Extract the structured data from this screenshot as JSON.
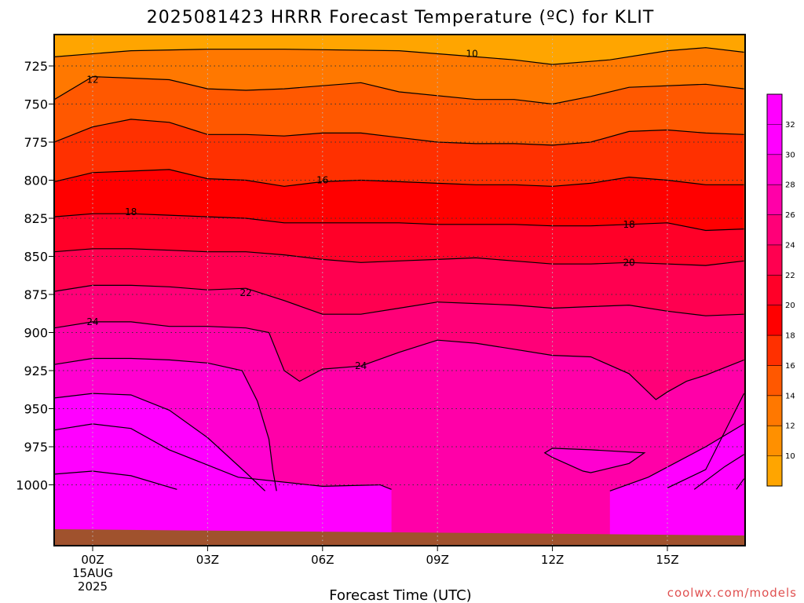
{
  "chart_data": {
    "type": "heatmap",
    "title": "2025081423 HRRR Forecast Temperature (ºC) for KLIT",
    "xlabel": "Forecast Time (UTC)",
    "ylabel": "",
    "credit": "coolwx.com/models",
    "x_ticks": [
      {
        "hour": 0,
        "lines": [
          "00Z",
          "15AUG",
          "2025"
        ]
      },
      {
        "hour": 3,
        "lines": [
          "03Z"
        ]
      },
      {
        "hour": 6,
        "lines": [
          "06Z"
        ]
      },
      {
        "hour": 9,
        "lines": [
          "09Z"
        ]
      },
      {
        "hour": 12,
        "lines": [
          "12Z"
        ]
      },
      {
        "hour": 15,
        "lines": [
          "15Z"
        ]
      }
    ],
    "xlim": [
      -1,
      17
    ],
    "y_ticks": [
      725,
      750,
      775,
      800,
      825,
      850,
      875,
      900,
      925,
      950,
      975,
      1000
    ],
    "ylim": [
      1012,
      712
    ],
    "x_grid": [
      0,
      3,
      6,
      9,
      12,
      15
    ],
    "levels": [
      8,
      10,
      12,
      14,
      16,
      18,
      20,
      22,
      24,
      26,
      28,
      30,
      32
    ],
    "fill_colors": [
      "#ffa500",
      "#ff9000",
      "#ff7800",
      "#ff5800",
      "#ff3000",
      "#ff0000",
      "#ff0028",
      "#ff0050",
      "#ff0078",
      "#ff00a8",
      "#ff00d0",
      "#ff00ff",
      "#ff00ff"
    ],
    "colorbar_ticks": [
      10,
      12,
      14,
      16,
      18,
      20,
      22,
      24,
      26,
      28,
      30,
      32
    ],
    "contours": [
      {
        "level": 10,
        "x": [
          -1,
          1,
          3,
          5,
          8,
          9.5,
          11,
          12,
          13.5,
          15,
          16,
          17
        ],
        "p": [
          719,
          715,
          714,
          714,
          715,
          718,
          721,
          724,
          721,
          715,
          713,
          716
        ]
      },
      {
        "level": 12,
        "x": [
          -1,
          0,
          1,
          2,
          3,
          4,
          5,
          7,
          8,
          10,
          11,
          12,
          13,
          14,
          16,
          17
        ],
        "p": [
          747,
          732,
          733,
          734,
          740,
          741,
          740,
          736,
          742,
          747,
          747,
          750,
          745,
          739,
          737,
          740
        ]
      },
      {
        "level": 14,
        "x": [
          -1,
          0,
          1,
          2,
          3,
          4,
          5,
          6,
          7,
          8,
          9,
          10,
          11,
          12,
          13,
          14,
          15,
          16,
          17
        ],
        "p": [
          775,
          765,
          760,
          762,
          770,
          770,
          771,
          769,
          769,
          772,
          775,
          776,
          776,
          777,
          775,
          768,
          767,
          769,
          770
        ]
      },
      {
        "level": 16,
        "x": [
          -1,
          0,
          1,
          2,
          3,
          4,
          5,
          6,
          7,
          8,
          9,
          10,
          11,
          12,
          13,
          14,
          15,
          16,
          17
        ],
        "p": [
          801,
          795,
          794,
          793,
          799,
          800,
          804,
          801,
          800,
          801,
          802,
          803,
          803,
          804,
          802,
          798,
          800,
          803,
          803
        ]
      },
      {
        "level": 18,
        "x": [
          -1,
          0,
          1,
          2,
          3,
          4,
          5,
          6,
          7,
          8,
          9,
          10,
          11,
          12,
          13,
          14,
          15,
          16,
          17
        ],
        "p": [
          824,
          822,
          822,
          823,
          824,
          825,
          828,
          828,
          828,
          828,
          829,
          829,
          829,
          830,
          830,
          829,
          828,
          833,
          832
        ]
      },
      {
        "level": 20,
        "x": [
          -1,
          0,
          1,
          2,
          3,
          4,
          5,
          6,
          7,
          8,
          9,
          10,
          11,
          12,
          13,
          14,
          15,
          16,
          17
        ],
        "p": [
          847,
          845,
          845,
          846,
          847,
          847,
          849,
          852,
          854,
          853,
          852,
          851,
          853,
          855,
          855,
          854,
          855,
          856,
          853
        ]
      },
      {
        "level": 22,
        "x": [
          -1,
          0,
          1,
          2,
          3,
          4,
          5,
          6,
          7,
          8,
          9,
          10,
          11,
          12,
          13,
          14,
          15,
          16,
          17
        ],
        "p": [
          873,
          869,
          869,
          870,
          872,
          871,
          879,
          888,
          888,
          884,
          880,
          881,
          882,
          884,
          883,
          882,
          886,
          889,
          888
        ]
      },
      {
        "level": 24,
        "x": [
          -1,
          0,
          1,
          2,
          3,
          4,
          4.6,
          5,
          5.4,
          6,
          7,
          8,
          9,
          10,
          11,
          12,
          13,
          14,
          14.7,
          15,
          15.5,
          16,
          17
        ],
        "p": [
          897,
          893,
          893,
          896,
          896,
          897,
          900,
          925,
          932,
          924,
          922,
          913,
          905,
          907,
          911,
          915,
          916,
          927,
          944,
          939,
          932,
          928,
          918
        ]
      },
      {
        "level": 26,
        "x": [
          -1,
          0,
          1,
          2,
          3,
          3.9,
          4.3,
          4.6,
          4.7,
          4.8
        ],
        "p": [
          921,
          917,
          917,
          918,
          920,
          925,
          945,
          970,
          990,
          1004
        ]
      },
      {
        "level": 26,
        "x": [
          15,
          16,
          17
        ],
        "p": [
          1002,
          990,
          940
        ]
      },
      {
        "level": 28,
        "x": [
          -1,
          0,
          1,
          2,
          3,
          4,
          4.5
        ],
        "p": [
          943,
          940,
          941,
          951,
          969,
          992,
          1004
        ]
      },
      {
        "level": 28,
        "x": [
          13.5,
          14.5,
          16,
          17
        ],
        "p": [
          1004,
          995,
          975,
          960
        ]
      },
      {
        "level": 30,
        "x": [
          -1,
          0,
          1,
          2,
          3.8,
          6,
          7.5,
          7.8
        ],
        "p": [
          964,
          960,
          963,
          977,
          995,
          1001,
          1000,
          1003
        ]
      },
      {
        "level": 30,
        "x": [
          15.7,
          16.5,
          17
        ],
        "p": [
          1003,
          988,
          980
        ]
      },
      {
        "level": 32,
        "x": [
          -1,
          0,
          1,
          2.2
        ],
        "p": [
          993,
          991,
          994,
          1003
        ]
      },
      {
        "level": 32,
        "x": [
          16.8,
          17
        ],
        "p": [
          1003,
          996
        ]
      }
    ],
    "closed_contours": [
      {
        "level": 26,
        "x": [
          11.8,
          12,
          13,
          14.4,
          14,
          13,
          12.8,
          12,
          11.8
        ],
        "p": [
          979,
          976,
          977,
          979,
          986,
          992,
          991,
          982,
          979
        ]
      }
    ],
    "contour_labels": [
      {
        "text": "10",
        "x": 9.9,
        "p": 717
      },
      {
        "text": "12",
        "x": 0,
        "p": 734
      },
      {
        "text": "16",
        "x": 6,
        "p": 800
      },
      {
        "text": "18",
        "x": 1,
        "p": 821
      },
      {
        "text": "18",
        "x": 14,
        "p": 829
      },
      {
        "text": "20",
        "x": 14,
        "p": 854
      },
      {
        "text": "22",
        "x": 4,
        "p": 874
      },
      {
        "text": "24",
        "x": 0,
        "p": 893
      },
      {
        "text": "24",
        "x": 7,
        "p": 922
      }
    ],
    "terrain_color": "#a0522d"
  }
}
